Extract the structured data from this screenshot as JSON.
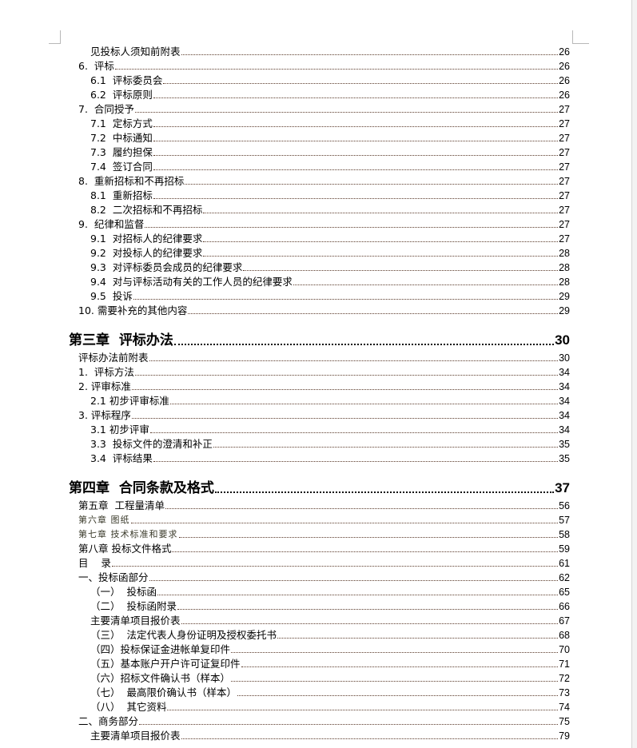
{
  "toc": [
    {
      "text": "见投标人须知前附表",
      "page": "26",
      "level": 1
    },
    {
      "text": "6.  评标",
      "page": "26",
      "level": 0
    },
    {
      "text": "6.1  评标委员会",
      "page": "26",
      "level": 1
    },
    {
      "text": "6.2  评标原则",
      "page": "26",
      "level": 1
    },
    {
      "text": "7.  合同授予",
      "page": "27",
      "level": 0
    },
    {
      "text": "7.1  定标方式",
      "page": "27",
      "level": 1
    },
    {
      "text": "7.2  中标通知",
      "page": "27",
      "level": 1
    },
    {
      "text": "7.3  履约担保",
      "page": "27",
      "level": 1
    },
    {
      "text": "7.4  签订合同",
      "page": "27",
      "level": 1
    },
    {
      "text": "8.  重新招标和不再招标",
      "page": "27",
      "level": 0
    },
    {
      "text": "8.1  重新招标",
      "page": "27",
      "level": 1
    },
    {
      "text": "8.2  二次招标和不再招标",
      "page": "27",
      "level": 1
    },
    {
      "text": "9.  纪律和监督",
      "page": "27",
      "level": 0
    },
    {
      "text": "9.1  对招标人的纪律要求",
      "page": "27",
      "level": 1
    },
    {
      "text": "9.2  对投标人的纪律要求",
      "page": "28",
      "level": 1
    },
    {
      "text": "9.3  对评标委员会成员的纪律要求",
      "page": "28",
      "level": 1
    },
    {
      "text": "9.4  对与评标活动有关的工作人员的纪律要求",
      "page": "28",
      "level": 1
    },
    {
      "text": "9.5  投诉",
      "page": "29",
      "level": 1
    },
    {
      "text": "10. 需要补充的其他内容",
      "page": "29",
      "level": 0
    },
    {
      "text": "第三章  评标办法",
      "page": "30",
      "level": "chapter"
    },
    {
      "text": "评标办法前附表",
      "page": "30",
      "level": 0
    },
    {
      "text": "1.  评标方法",
      "page": "34",
      "level": 0
    },
    {
      "text": "2. 评审标准",
      "page": "34",
      "level": 0
    },
    {
      "text": "2.1 初步评审标准",
      "page": "34",
      "level": 1
    },
    {
      "text": "3. 评标程序",
      "page": "34",
      "level": 0
    },
    {
      "text": "3.1 初步评审",
      "page": "34",
      "level": 1
    },
    {
      "text": "3.3  投标文件的澄清和补正",
      "page": "35",
      "level": 1
    },
    {
      "text": "3.4  评标结果",
      "page": "35",
      "level": 1
    },
    {
      "text": "第四章  合同条款及格式",
      "page": "37",
      "level": "chapter"
    },
    {
      "text": "第五章  工程量清单",
      "page": "56",
      "level": 0
    },
    {
      "text": "第六章 图纸",
      "page": "57",
      "level": 0,
      "alt": true
    },
    {
      "text": "第七章 技术标准和要求",
      "page": "58",
      "level": 0,
      "alt": true
    },
    {
      "text": "第八章 投标文件格式",
      "page": "59",
      "level": 0
    },
    {
      "text": "目    录",
      "page": "61",
      "level": 0
    },
    {
      "text": "一、投标函部分",
      "page": "62",
      "level": 0
    },
    {
      "text": "（一）  投标函",
      "page": "65",
      "level": 1
    },
    {
      "text": "（二）  投标函附录",
      "page": "66",
      "level": 1
    },
    {
      "text": "主要清单项目报价表",
      "page": "67",
      "level": 1
    },
    {
      "text": "（三）  法定代表人身份证明及授权委托书",
      "page": "68",
      "level": 1
    },
    {
      "text": "（四）投标保证金进帐单复印件",
      "page": "70",
      "level": 1
    },
    {
      "text": "（五）基本账户开户许可证复印件",
      "page": "71",
      "level": 1
    },
    {
      "text": "（六）招标文件确认书（样本）",
      "page": "72",
      "level": 1
    },
    {
      "text": "（七）  最高限价确认书（样本）",
      "page": "73",
      "level": 1
    },
    {
      "text": "（八）  其它资料",
      "page": "74",
      "level": 1
    },
    {
      "text": "二、商务部分",
      "page": "75",
      "level": 0
    },
    {
      "text": "主要清单项目报价表",
      "page": "79",
      "level": 1
    }
  ],
  "colors": {
    "leader": "#5a3a2a",
    "text": "#000000"
  }
}
